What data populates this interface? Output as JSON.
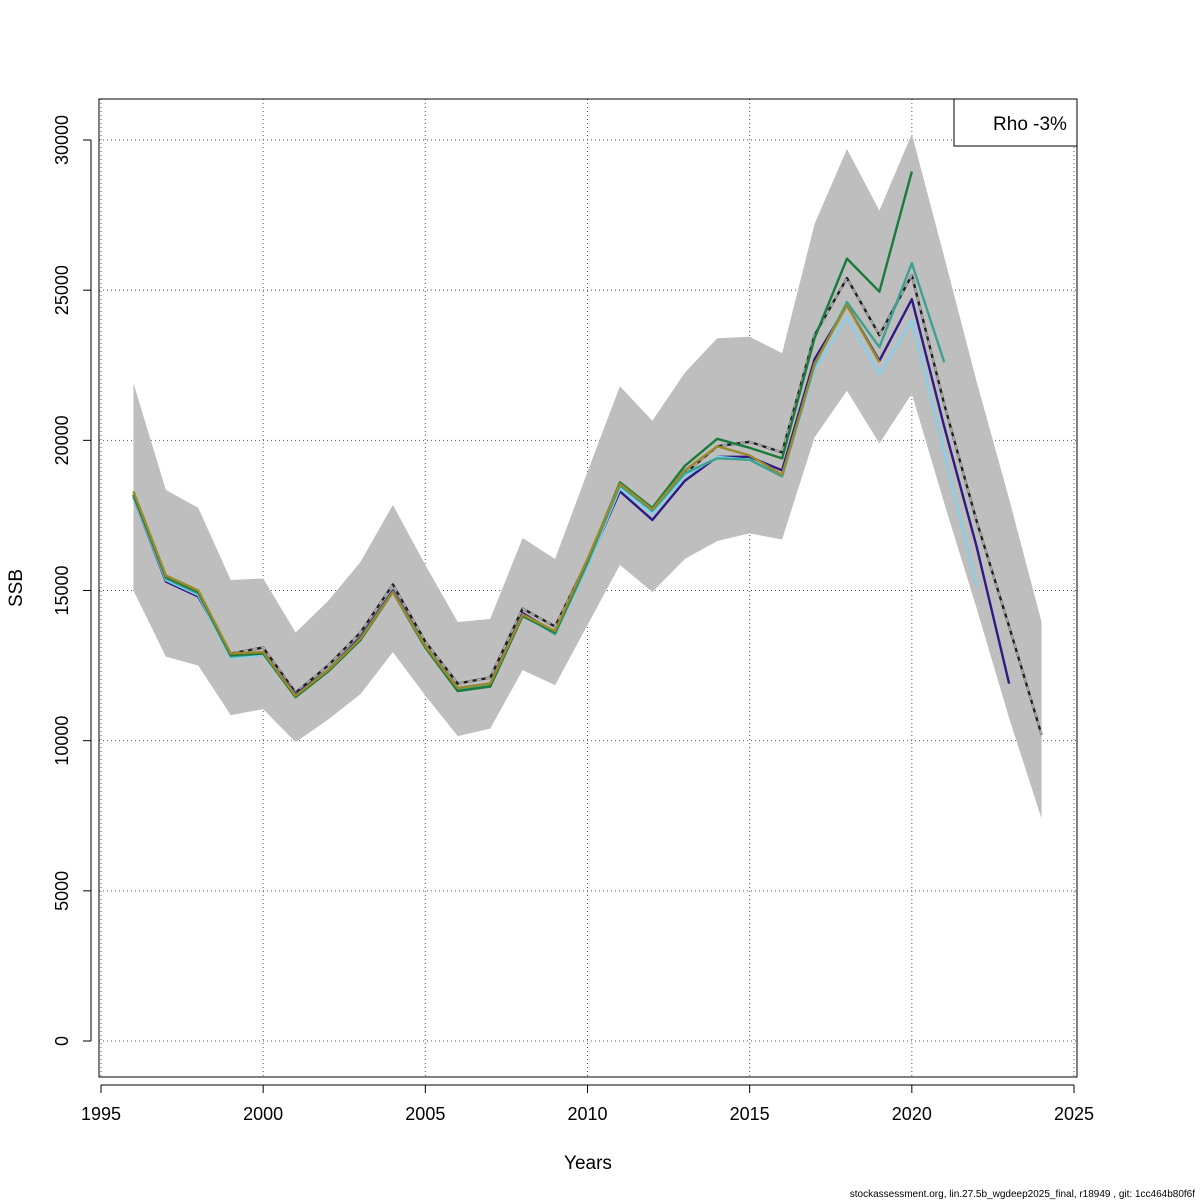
{
  "chart_data": {
    "type": "line",
    "title": "",
    "xlabel": "Years",
    "ylabel": "SSB",
    "xlim": [
      1995,
      2025
    ],
    "ylim": [
      0,
      30000
    ],
    "grid": true,
    "legend_text": "Rho -3%",
    "legend_position": "top-right",
    "x_ticks": [
      1995,
      2000,
      2005,
      2010,
      2015,
      2020,
      2025
    ],
    "y_ticks": [
      0,
      5000,
      10000,
      15000,
      20000,
      25000,
      30000
    ],
    "confidence_band": {
      "color": "#bebebe",
      "x": [
        1996,
        1997,
        1998,
        1999,
        2000,
        2001,
        2002,
        2003,
        2004,
        2005,
        2006,
        2007,
        2008,
        2009,
        2010,
        2011,
        2012,
        2013,
        2014,
        2015,
        2016,
        2017,
        2018,
        2019,
        2020,
        2021,
        2022,
        2023,
        2024
      ],
      "upper": [
        21900,
        18350,
        17750,
        15350,
        15400,
        13600,
        14650,
        15950,
        17850,
        15850,
        13950,
        14050,
        16750,
        16050,
        18950,
        21800,
        20650,
        22250,
        23400,
        23450,
        22900,
        27200,
        29700,
        27650,
        30200,
        26100,
        21950,
        18050,
        13950
      ],
      "lower": [
        15000,
        12800,
        12500,
        10850,
        11050,
        9950,
        10700,
        11550,
        12950,
        11500,
        10150,
        10400,
        12350,
        11850,
        13850,
        15850,
        14950,
        16050,
        16650,
        16900,
        16700,
        20100,
        21650,
        19900,
        21550,
        17900,
        14400,
        10750,
        7400
      ]
    },
    "series": [
      {
        "color": "#1f1f1f",
        "dashed": false,
        "x": [
          1996,
          1997,
          1998,
          1999,
          2000,
          2001,
          2002,
          2003,
          2004,
          2005,
          2006,
          2007,
          2008,
          2009,
          2010,
          2011,
          2012,
          2013,
          2014,
          2015,
          2016,
          2017,
          2018,
          2019,
          2020,
          2021,
          2022,
          2023,
          2024
        ],
        "values": [
          18200,
          15400,
          14900,
          12900,
          13100,
          11600,
          12500,
          13600,
          15200,
          13300,
          11900,
          12100,
          14400,
          13800,
          16000,
          18500,
          17600,
          18900,
          19800,
          19950,
          19600,
          23500,
          25400,
          23500,
          25500,
          21200,
          17300,
          13800,
          10200
        ]
      },
      {
        "color": "#aaaaaa",
        "dashed": true,
        "x": [
          1996,
          1997,
          1998,
          1999,
          2000,
          2001,
          2002,
          2003,
          2004,
          2005,
          2006,
          2007,
          2008,
          2009,
          2010,
          2011,
          2012,
          2013,
          2014,
          2015,
          2016,
          2017,
          2018,
          2019,
          2020,
          2021,
          2022,
          2023,
          2024
        ],
        "values": [
          18200,
          15400,
          14900,
          12900,
          13100,
          11600,
          12500,
          13600,
          15200,
          13300,
          11900,
          12100,
          14400,
          13800,
          16000,
          18500,
          17600,
          18900,
          19800,
          19950,
          19600,
          23500,
          25400,
          23500,
          25500,
          21200,
          17300,
          13800,
          10200
        ]
      },
      {
        "color": "#2e1a87",
        "dashed": false,
        "x": [
          1996,
          1997,
          1998,
          1999,
          2000,
          2001,
          2002,
          2003,
          2004,
          2005,
          2006,
          2007,
          2008,
          2009,
          2010,
          2011,
          2012,
          2013,
          2014,
          2015,
          2016,
          2017,
          2018,
          2019,
          2020,
          2021,
          2022,
          2023
        ],
        "values": [
          18100,
          15300,
          14800,
          12850,
          12950,
          11550,
          12350,
          13450,
          15000,
          13150,
          11750,
          11900,
          14250,
          13600,
          15850,
          18300,
          17350,
          18650,
          19450,
          19450,
          19000,
          22700,
          24500,
          22650,
          24700,
          20450,
          16450,
          11900
        ]
      },
      {
        "color": "#87ceeb",
        "dashed": false,
        "x": [
          1996,
          1997,
          1998,
          1999,
          2000,
          2001,
          2002,
          2003,
          2004,
          2005,
          2006,
          2007,
          2008,
          2009,
          2010,
          2011,
          2012,
          2013,
          2014,
          2015,
          2016,
          2017,
          2018,
          2019,
          2020,
          2021,
          2022
        ],
        "values": [
          18100,
          15350,
          14850,
          12750,
          12850,
          11500,
          12300,
          13400,
          14950,
          13100,
          11700,
          11850,
          14150,
          13550,
          15800,
          18400,
          17550,
          18800,
          19450,
          19350,
          18850,
          22350,
          24100,
          22200,
          24000,
          19600,
          15150
        ]
      },
      {
        "color": "#3aa28f",
        "dashed": false,
        "x": [
          1996,
          1997,
          1998,
          1999,
          2000,
          2001,
          2002,
          2003,
          2004,
          2005,
          2006,
          2007,
          2008,
          2009,
          2010,
          2011,
          2012,
          2013,
          2014,
          2015,
          2016,
          2017,
          2018,
          2019,
          2020,
          2021
        ],
        "values": [
          18150,
          15400,
          14900,
          12800,
          12900,
          11500,
          12300,
          13400,
          14950,
          13100,
          11700,
          11850,
          14200,
          13550,
          15900,
          18500,
          17650,
          18900,
          19400,
          19350,
          18800,
          22500,
          24600,
          23100,
          25900,
          22600
        ]
      },
      {
        "color": "#1a7a3a",
        "dashed": false,
        "x": [
          1996,
          1997,
          1998,
          1999,
          2000,
          2001,
          2002,
          2003,
          2004,
          2005,
          2006,
          2007,
          2008,
          2009,
          2010,
          2011,
          2012,
          2013,
          2014,
          2015,
          2016,
          2017,
          2018,
          2019,
          2020
        ],
        "values": [
          18200,
          15450,
          14950,
          12850,
          12900,
          11450,
          12300,
          13350,
          14950,
          13100,
          11650,
          11800,
          14150,
          13600,
          16000,
          18600,
          17750,
          19150,
          20050,
          19750,
          19400,
          23400,
          26050,
          24950,
          28950
        ]
      },
      {
        "color": "#9a8a2c",
        "dashed": false,
        "x": [
          1996,
          1997,
          1998,
          1999,
          2000,
          2001,
          2002,
          2003,
          2004,
          2005,
          2006,
          2007,
          2008,
          2009,
          2010,
          2011,
          2012,
          2013,
          2014,
          2015,
          2016,
          2017,
          2018,
          2019
        ],
        "values": [
          18300,
          15500,
          15000,
          12900,
          12950,
          11500,
          12350,
          13400,
          14950,
          13150,
          11750,
          11900,
          14200,
          13650,
          16050,
          18550,
          17700,
          19000,
          19800,
          19500,
          18850,
          22550,
          24500,
          22600
        ]
      }
    ]
  },
  "footer": {
    "text": "stockassessment.org, lin.27.5b_wgdeep2025_final, r18949 , git: 1cc464b80f6f"
  }
}
